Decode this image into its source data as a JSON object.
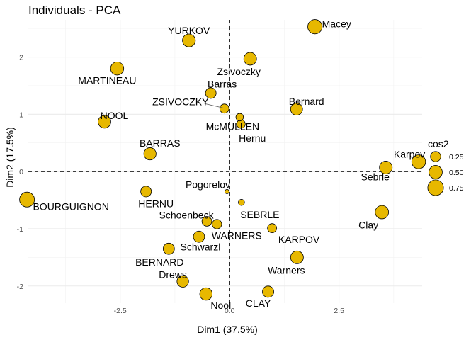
{
  "chart_data": {
    "type": "scatter",
    "title": "Individuals - PCA",
    "xlabel": "Dim1 (37.5%)",
    "ylabel": "Dim2 (17.5%)",
    "xlim": [
      -4.6,
      4.4
    ],
    "ylim": [
      -2.3,
      2.65
    ],
    "x_ticks": [
      -2.5,
      0.0,
      2.5
    ],
    "x_tick_labels": [
      "-2.5",
      "0.0",
      "2.5"
    ],
    "y_ticks": [
      -2,
      -1,
      0,
      1,
      2
    ],
    "y_tick_labels": [
      "-2",
      "-1",
      "0",
      "1",
      "2"
    ],
    "grid": true,
    "reference_lines": {
      "x": 0,
      "y": 0,
      "style": "dashed"
    },
    "point_color": "#E7B800",
    "point_stroke": "#000000",
    "legend": {
      "title": "cos2",
      "placement": "right",
      "entries": [
        {
          "label": "0.25",
          "value": 0.25
        },
        {
          "label": "0.50",
          "value": 0.5
        },
        {
          "label": "0.75",
          "value": 0.75
        }
      ]
    },
    "points": [
      {
        "name": "Macey",
        "x": 1.95,
        "y": 2.53,
        "cos2": 0.6
      },
      {
        "name": "YURKOV",
        "x": -0.93,
        "y": 2.29,
        "cos2": 0.46
      },
      {
        "name": "Zsivoczky",
        "x": 0.47,
        "y": 1.97,
        "cos2": 0.44
      },
      {
        "name": "MARTINEAU",
        "x": -2.57,
        "y": 1.8,
        "cos2": 0.48
      },
      {
        "name": "Barras",
        "x": -0.43,
        "y": 1.37,
        "cos2": 0.28
      },
      {
        "name": "ZSIVOCZKY",
        "x": -0.12,
        "y": 1.1,
        "cos2": 0.18
      },
      {
        "name": "McMULLEN",
        "x": 0.23,
        "y": 0.95,
        "cos2": 0.1
      },
      {
        "name": "Bernard",
        "x": 1.53,
        "y": 1.09,
        "cos2": 0.38
      },
      {
        "name": "Hernu",
        "x": 0.26,
        "y": 0.83,
        "cos2": 0.15
      },
      {
        "name": "NOOL",
        "x": -2.86,
        "y": 0.87,
        "cos2": 0.44
      },
      {
        "name": "BARRAS",
        "x": -1.82,
        "y": 0.31,
        "cos2": 0.4
      },
      {
        "name": "Karpov",
        "x": 4.32,
        "y": 0.17,
        "cos2": 0.55
      },
      {
        "name": "Sebrle",
        "x": 3.57,
        "y": 0.07,
        "cos2": 0.45
      },
      {
        "name": "Pogorelov",
        "x": -0.06,
        "y": -0.35,
        "cos2": 0.01
      },
      {
        "name": "HERNU",
        "x": -1.91,
        "y": -0.35,
        "cos2": 0.28
      },
      {
        "name": "BOURGUIGNON",
        "x": -4.63,
        "y": -0.49,
        "cos2": 0.66
      },
      {
        "name": "SEBRLE",
        "x": 0.27,
        "y": -0.54,
        "cos2": 0.05
      },
      {
        "name": "Clay",
        "x": 3.48,
        "y": -0.71,
        "cos2": 0.5
      },
      {
        "name": "Schoenbeck",
        "x": -0.52,
        "y": -0.87,
        "cos2": 0.22
      },
      {
        "name": "WARNERS",
        "x": -0.29,
        "y": -0.92,
        "cos2": 0.2
      },
      {
        "name": "KARPOV",
        "x": 0.97,
        "y": -0.99,
        "cos2": 0.18
      },
      {
        "name": "Schwarzl",
        "x": -0.7,
        "y": -1.14,
        "cos2": 0.32
      },
      {
        "name": "BERNARD",
        "x": -1.39,
        "y": -1.35,
        "cos2": 0.32
      },
      {
        "name": "Warners",
        "x": 1.54,
        "y": -1.5,
        "cos2": 0.45
      },
      {
        "name": "Drews",
        "x": -1.07,
        "y": -1.92,
        "cos2": 0.35
      },
      {
        "name": "Nool",
        "x": -0.54,
        "y": -2.14,
        "cos2": 0.42
      },
      {
        "name": "CLAY",
        "x": 0.88,
        "y": -2.1,
        "cos2": 0.33
      }
    ]
  }
}
